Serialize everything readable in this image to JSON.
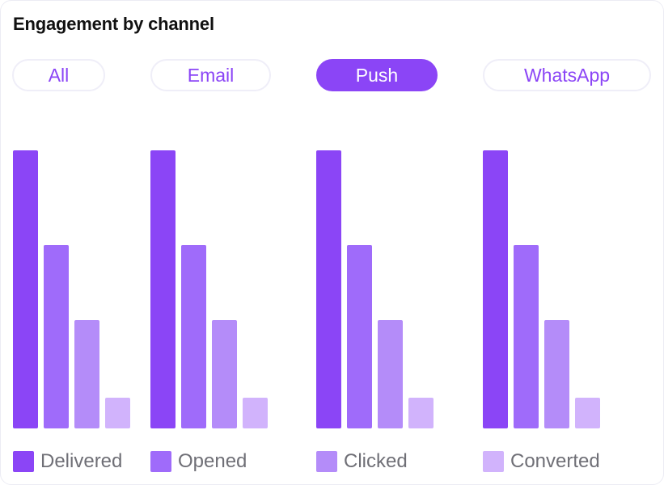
{
  "title": "Engagement by channel",
  "tabs": [
    {
      "label": "All",
      "active": false
    },
    {
      "label": "Email",
      "active": false
    },
    {
      "label": "Push",
      "active": true
    },
    {
      "label": "WhatsApp",
      "active": false
    }
  ],
  "colors": {
    "accent": "#8b45f6",
    "delivered": "#8b45f6",
    "opened": "#9f6bfa",
    "clicked": "#b48cf9",
    "converted": "#d1b3fc"
  },
  "chart_data": {
    "type": "bar",
    "categories": [
      "All",
      "Email",
      "Push",
      "WhatsApp"
    ],
    "series": [
      {
        "name": "Delivered",
        "values": [
          100,
          100,
          100,
          100
        ]
      },
      {
        "name": "Opened",
        "values": [
          66,
          66,
          66,
          66
        ]
      },
      {
        "name": "Clicked",
        "values": [
          39,
          39,
          39,
          39
        ]
      },
      {
        "name": "Converted",
        "values": [
          11,
          11,
          11,
          11
        ]
      }
    ],
    "ylim": [
      0,
      100
    ],
    "legend": "bottom",
    "grid": false
  }
}
